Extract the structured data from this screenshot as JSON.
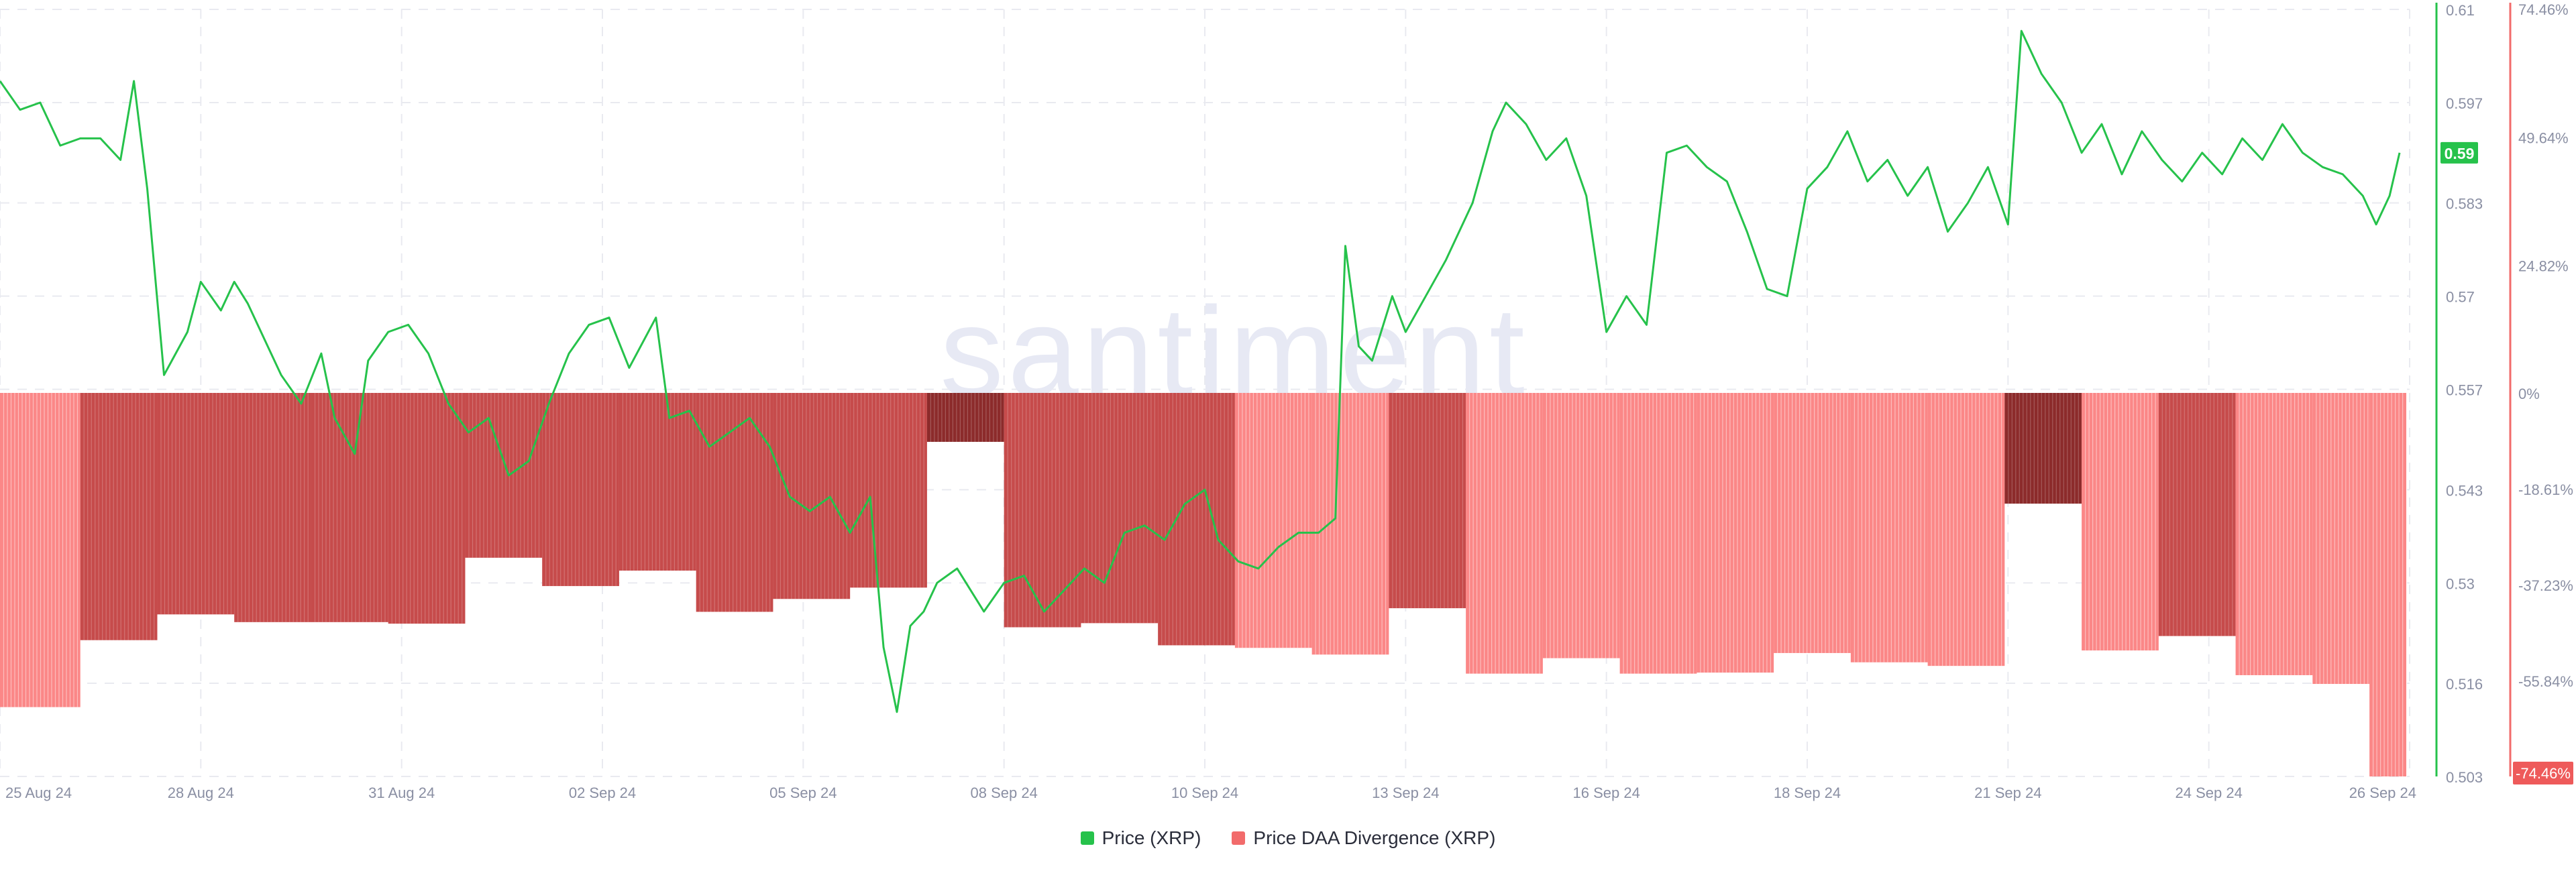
{
  "watermark": "santiment",
  "colors": {
    "price_line": "#26c24b",
    "price_tag_bg": "#26c24b",
    "divergence_light": "#fb8787",
    "divergence_dark": "#c64b4b",
    "divergence_darkest": "#8c2b2b",
    "divergence_tag_bg": "#ee5a5a",
    "grid": "#e9eaf0",
    "axis_text": "#8a8fa3",
    "left_axis_line": "#26c24b",
    "right_axis_line": "#f26b6b",
    "watermark": "#e7e9f4"
  },
  "legend": [
    {
      "label": "Price (XRP)",
      "color": "#26c24b"
    },
    {
      "label": "Price DAA Divergence (XRP)",
      "color": "#f26b6b"
    }
  ],
  "chart_data": {
    "type": "bar+line",
    "x_tick_labels": [
      "25 Aug 24",
      "28 Aug 24",
      "31 Aug 24",
      "02 Sep 24",
      "05 Sep 24",
      "08 Sep 24",
      "10 Sep 24",
      "13 Sep 24",
      "16 Sep 24",
      "18 Sep 24",
      "21 Sep 24",
      "24 Sep 24",
      "26 Sep 24"
    ],
    "x_tick_days": [
      0,
      3,
      6,
      9,
      12,
      15,
      18,
      21,
      24,
      27,
      30,
      33,
      36
    ],
    "price_axis": {
      "ylim": [
        0.503,
        0.61
      ],
      "tick_labels": [
        "0.61",
        "0.597",
        "0.583",
        "0.57",
        "0.557",
        "0.543",
        "0.53",
        "0.516",
        "0.503"
      ],
      "tick_values": [
        0.61,
        0.597,
        0.583,
        0.57,
        0.557,
        0.543,
        0.53,
        0.516,
        0.503
      ],
      "current_value_label": "0.59",
      "current_value": 0.59
    },
    "divergence_axis": {
      "ylim": [
        -74.46,
        74.46
      ],
      "tick_labels": [
        "74.46%",
        "49.64%",
        "24.82%",
        "0%",
        "-18.61%",
        "-37.23%",
        "-55.84%",
        "-74.46%"
      ],
      "tick_values": [
        74.46,
        49.64,
        24.82,
        0,
        -18.61,
        -37.23,
        -55.84,
        -74.46
      ],
      "highlighted_label": "-74.46%"
    },
    "series": [
      {
        "name": "Price (XRP)",
        "kind": "line",
        "points": [
          [
            0,
            0.6
          ],
          [
            0.3,
            0.596
          ],
          [
            0.6,
            0.597
          ],
          [
            0.9,
            0.591
          ],
          [
            1.2,
            0.592
          ],
          [
            1.5,
            0.592
          ],
          [
            1.8,
            0.589
          ],
          [
            2.0,
            0.6
          ],
          [
            2.2,
            0.585
          ],
          [
            2.45,
            0.559
          ],
          [
            2.8,
            0.565
          ],
          [
            3.0,
            0.572
          ],
          [
            3.3,
            0.568
          ],
          [
            3.5,
            0.572
          ],
          [
            3.7,
            0.569
          ],
          [
            4.0,
            0.563
          ],
          [
            4.2,
            0.559
          ],
          [
            4.5,
            0.555
          ],
          [
            4.8,
            0.562
          ],
          [
            5.0,
            0.553
          ],
          [
            5.3,
            0.548
          ],
          [
            5.5,
            0.561
          ],
          [
            5.8,
            0.565
          ],
          [
            6.1,
            0.566
          ],
          [
            6.4,
            0.562
          ],
          [
            6.7,
            0.555
          ],
          [
            7.0,
            0.551
          ],
          [
            7.3,
            0.553
          ],
          [
            7.6,
            0.545
          ],
          [
            7.9,
            0.547
          ],
          [
            8.2,
            0.555
          ],
          [
            8.5,
            0.562
          ],
          [
            8.8,
            0.566
          ],
          [
            9.1,
            0.567
          ],
          [
            9.4,
            0.56
          ],
          [
            9.8,
            0.567
          ],
          [
            10.0,
            0.553
          ],
          [
            10.3,
            0.554
          ],
          [
            10.6,
            0.549
          ],
          [
            10.9,
            0.551
          ],
          [
            11.2,
            0.553
          ],
          [
            11.5,
            0.549
          ],
          [
            11.8,
            0.542
          ],
          [
            12.1,
            0.54
          ],
          [
            12.4,
            0.542
          ],
          [
            12.7,
            0.537
          ],
          [
            13.0,
            0.542
          ],
          [
            13.2,
            0.521
          ],
          [
            13.4,
            0.512
          ],
          [
            13.6,
            0.524
          ],
          [
            13.8,
            0.526
          ],
          [
            14.0,
            0.53
          ],
          [
            14.3,
            0.532
          ],
          [
            14.7,
            0.526
          ],
          [
            15.0,
            0.53
          ],
          [
            15.3,
            0.531
          ],
          [
            15.6,
            0.526
          ],
          [
            15.9,
            0.529
          ],
          [
            16.2,
            0.532
          ],
          [
            16.5,
            0.53
          ],
          [
            16.8,
            0.537
          ],
          [
            17.1,
            0.538
          ],
          [
            17.4,
            0.536
          ],
          [
            17.7,
            0.541
          ],
          [
            18.0,
            0.543
          ],
          [
            18.2,
            0.536
          ],
          [
            18.5,
            0.533
          ],
          [
            18.8,
            0.532
          ],
          [
            19.1,
            0.535
          ],
          [
            19.4,
            0.537
          ],
          [
            19.7,
            0.537
          ],
          [
            19.95,
            0.539
          ],
          [
            20.1,
            0.577
          ],
          [
            20.3,
            0.563
          ],
          [
            20.5,
            0.561
          ],
          [
            20.8,
            0.57
          ],
          [
            21.0,
            0.565
          ],
          [
            21.3,
            0.57
          ],
          [
            21.6,
            0.575
          ],
          [
            22.0,
            0.583
          ],
          [
            22.3,
            0.593
          ],
          [
            22.5,
            0.597
          ],
          [
            22.8,
            0.594
          ],
          [
            23.1,
            0.589
          ],
          [
            23.4,
            0.592
          ],
          [
            23.7,
            0.584
          ],
          [
            24.0,
            0.565
          ],
          [
            24.3,
            0.57
          ],
          [
            24.6,
            0.566
          ],
          [
            24.9,
            0.59
          ],
          [
            25.2,
            0.591
          ],
          [
            25.5,
            0.588
          ],
          [
            25.8,
            0.586
          ],
          [
            26.1,
            0.579
          ],
          [
            26.4,
            0.571
          ],
          [
            26.7,
            0.57
          ],
          [
            27.0,
            0.585
          ],
          [
            27.3,
            0.588
          ],
          [
            27.6,
            0.593
          ],
          [
            27.9,
            0.586
          ],
          [
            28.2,
            0.589
          ],
          [
            28.5,
            0.584
          ],
          [
            28.8,
            0.588
          ],
          [
            29.1,
            0.579
          ],
          [
            29.4,
            0.583
          ],
          [
            29.7,
            0.588
          ],
          [
            30.0,
            0.58
          ],
          [
            30.2,
            0.607
          ],
          [
            30.5,
            0.601
          ],
          [
            30.8,
            0.597
          ],
          [
            31.1,
            0.59
          ],
          [
            31.4,
            0.594
          ],
          [
            31.7,
            0.587
          ],
          [
            32.0,
            0.593
          ],
          [
            32.3,
            0.589
          ],
          [
            32.6,
            0.586
          ],
          [
            32.9,
            0.59
          ],
          [
            33.2,
            0.587
          ],
          [
            33.5,
            0.592
          ],
          [
            33.8,
            0.589
          ],
          [
            34.1,
            0.594
          ],
          [
            34.4,
            0.59
          ],
          [
            34.7,
            0.588
          ],
          [
            35.0,
            0.587
          ],
          [
            35.3,
            0.584
          ],
          [
            35.5,
            0.58
          ],
          [
            35.7,
            0.584
          ],
          [
            35.85,
            0.59
          ]
        ]
      },
      {
        "name": "Price DAA Divergence (XRP)",
        "kind": "bar",
        "unit": "%",
        "segments": [
          {
            "start": 0.0,
            "end": 1.2,
            "value": -61.0,
            "shade": "light"
          },
          {
            "start": 1.2,
            "end": 2.35,
            "value": -48.0,
            "shade": "dark"
          },
          {
            "start": 2.35,
            "end": 3.5,
            "value": -43.0,
            "shade": "dark"
          },
          {
            "start": 3.5,
            "end": 4.65,
            "value": -44.5,
            "shade": "dark"
          },
          {
            "start": 4.65,
            "end": 5.8,
            "value": -44.5,
            "shade": "dark"
          },
          {
            "start": 5.8,
            "end": 6.95,
            "value": -44.8,
            "shade": "dark"
          },
          {
            "start": 6.95,
            "end": 8.1,
            "value": -32.0,
            "shade": "dark"
          },
          {
            "start": 8.1,
            "end": 9.25,
            "value": -37.5,
            "shade": "dark"
          },
          {
            "start": 9.25,
            "end": 10.4,
            "value": -34.5,
            "shade": "dark"
          },
          {
            "start": 10.4,
            "end": 11.55,
            "value": -42.5,
            "shade": "dark"
          },
          {
            "start": 11.55,
            "end": 12.7,
            "value": -40.0,
            "shade": "dark"
          },
          {
            "start": 12.7,
            "end": 13.85,
            "value": -37.8,
            "shade": "dark"
          },
          {
            "start": 13.85,
            "end": 15.0,
            "value": -9.5,
            "shade": "darkest"
          },
          {
            "start": 15.0,
            "end": 16.15,
            "value": -45.5,
            "shade": "dark"
          },
          {
            "start": 16.15,
            "end": 17.3,
            "value": -44.7,
            "shade": "dark"
          },
          {
            "start": 17.3,
            "end": 18.45,
            "value": -49.0,
            "shade": "dark"
          },
          {
            "start": 18.45,
            "end": 19.6,
            "value": -49.5,
            "shade": "light"
          },
          {
            "start": 19.6,
            "end": 20.75,
            "value": -50.8,
            "shade": "light"
          },
          {
            "start": 20.75,
            "end": 21.9,
            "value": -41.8,
            "shade": "dark"
          },
          {
            "start": 21.9,
            "end": 23.05,
            "value": -54.5,
            "shade": "light"
          },
          {
            "start": 23.05,
            "end": 24.2,
            "value": -51.5,
            "shade": "light"
          },
          {
            "start": 24.2,
            "end": 25.35,
            "value": -54.5,
            "shade": "light"
          },
          {
            "start": 25.35,
            "end": 26.5,
            "value": -54.3,
            "shade": "light"
          },
          {
            "start": 26.5,
            "end": 27.65,
            "value": -50.5,
            "shade": "light"
          },
          {
            "start": 27.65,
            "end": 28.8,
            "value": -52.3,
            "shade": "light"
          },
          {
            "start": 28.8,
            "end": 29.95,
            "value": -53.0,
            "shade": "light"
          },
          {
            "start": 29.95,
            "end": 31.1,
            "value": -21.5,
            "shade": "darkest"
          },
          {
            "start": 31.1,
            "end": 32.25,
            "value": -50.0,
            "shade": "light"
          },
          {
            "start": 32.25,
            "end": 33.4,
            "value": -47.2,
            "shade": "dark"
          },
          {
            "start": 33.4,
            "end": 34.55,
            "value": -54.8,
            "shade": "light"
          },
          {
            "start": 34.55,
            "end": 35.4,
            "value": -56.5,
            "shade": "light"
          },
          {
            "start": 35.4,
            "end": 35.95,
            "value": -74.46,
            "shade": "light"
          }
        ]
      }
    ],
    "grid": true,
    "legend_position": "bottom-center"
  }
}
